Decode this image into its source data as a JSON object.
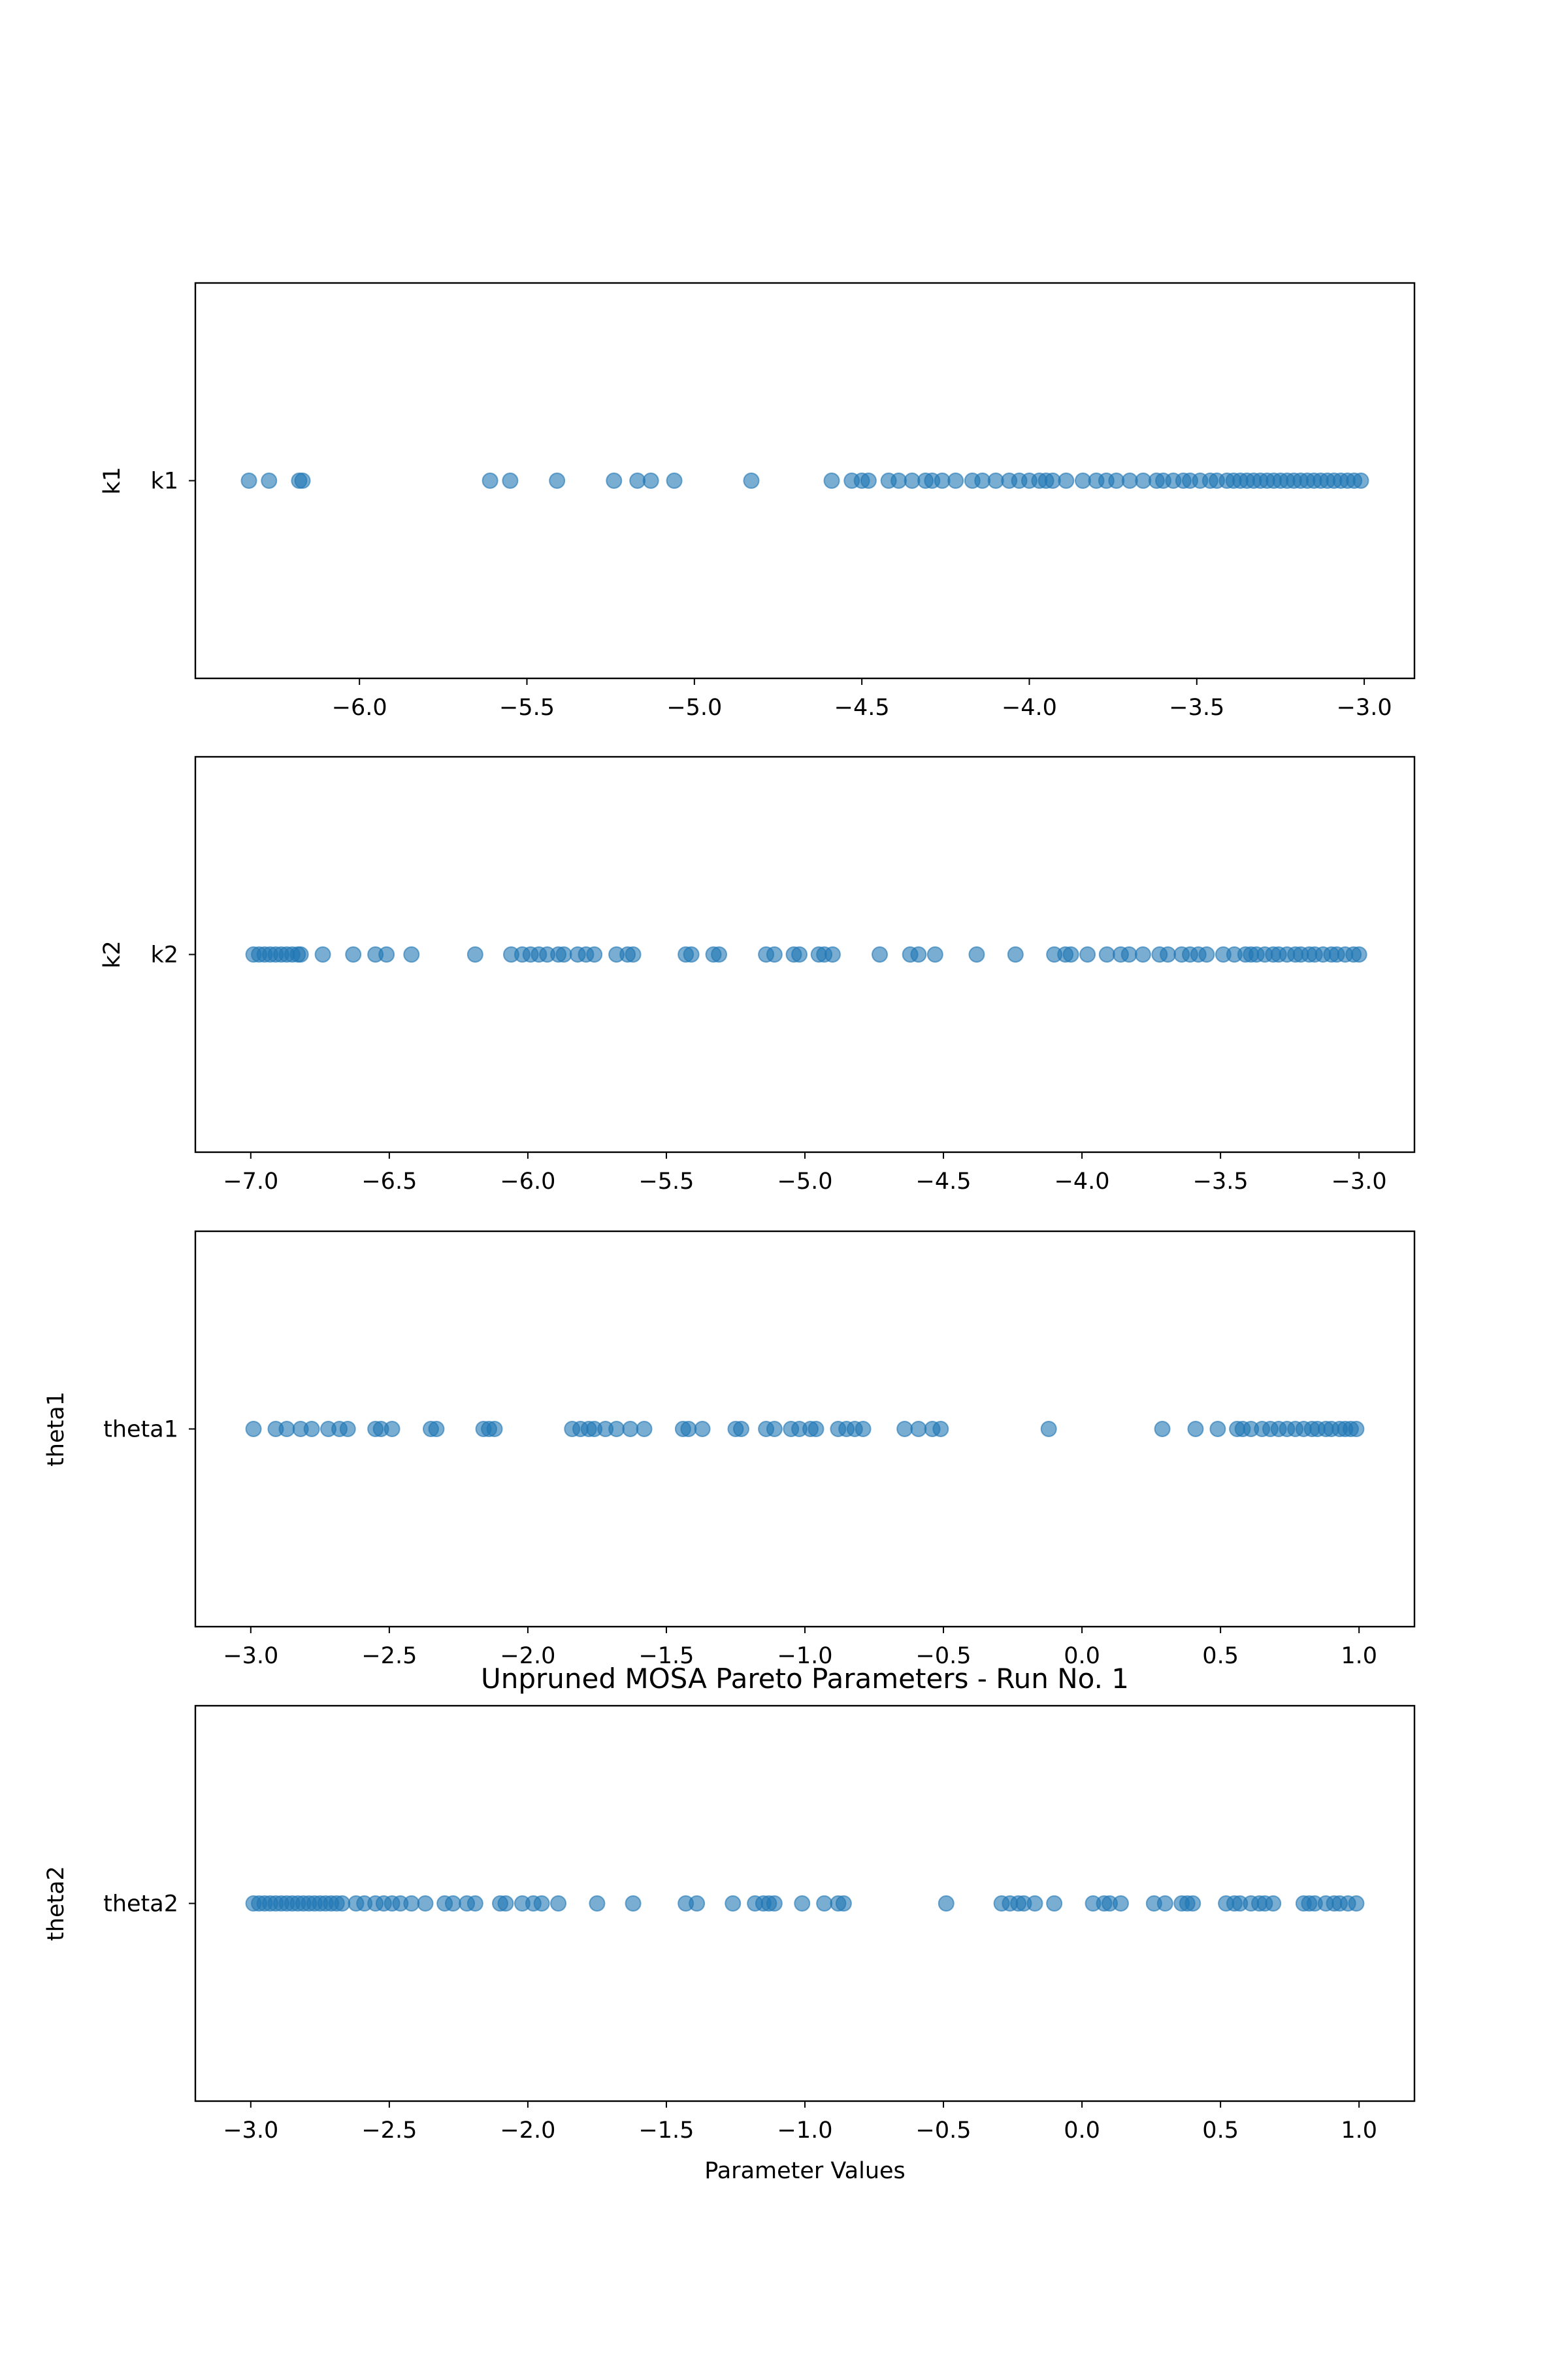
{
  "colors": {
    "marker": "#1f77b4",
    "axes": "#000000",
    "background": "#ffffff"
  },
  "chart_data": [
    {
      "type": "scatter",
      "title": "",
      "xlabel": "",
      "ylabel": "k1",
      "category": "k1",
      "xlim": [
        -6.49,
        -2.85
      ],
      "xticks": [
        -6.0,
        -5.5,
        -5.0,
        -4.5,
        -4.0,
        -3.5,
        -3.0
      ],
      "xtick_labels": [
        "−6.0",
        "−5.5",
        "−5.0",
        "−4.5",
        "−4.0",
        "−3.5",
        "−3.0"
      ],
      "grid": false,
      "x": [
        -6.33,
        -6.27,
        -6.18,
        -6.17,
        -5.61,
        -5.55,
        -5.41,
        -5.24,
        -5.17,
        -5.13,
        -5.06,
        -4.83,
        -4.59,
        -4.53,
        -4.5,
        -4.48,
        -4.42,
        -4.39,
        -4.35,
        -4.31,
        -4.29,
        -4.26,
        -4.22,
        -4.17,
        -4.14,
        -4.1,
        -4.06,
        -4.03,
        -4.0,
        -3.97,
        -3.95,
        -3.93,
        -3.89,
        -3.84,
        -3.8,
        -3.77,
        -3.74,
        -3.7,
        -3.66,
        -3.62,
        -3.6,
        -3.57,
        -3.54,
        -3.52,
        -3.49,
        -3.46,
        -3.44,
        -3.41,
        -3.39,
        -3.37,
        -3.35,
        -3.33,
        -3.31,
        -3.29,
        -3.27,
        -3.25,
        -3.23,
        -3.21,
        -3.19,
        -3.17,
        -3.15,
        -3.13,
        -3.11,
        -3.09,
        -3.07,
        -3.05,
        -3.03,
        -3.01
      ]
    },
    {
      "type": "scatter",
      "title": "",
      "xlabel": "",
      "ylabel": "k2",
      "category": "k2",
      "xlim": [
        -7.2,
        -2.8
      ],
      "xticks": [
        -7.0,
        -6.5,
        -6.0,
        -5.5,
        -5.0,
        -4.5,
        -4.0,
        -3.5,
        -3.0
      ],
      "xtick_labels": [
        "−7.0",
        "−6.5",
        "−6.0",
        "−5.5",
        "−5.0",
        "−4.5",
        "−4.0",
        "−3.5",
        "−3.0"
      ],
      "grid": false,
      "x": [
        -6.99,
        -6.97,
        -6.95,
        -6.93,
        -6.91,
        -6.89,
        -6.87,
        -6.85,
        -6.83,
        -6.82,
        -6.74,
        -6.63,
        -6.55,
        -6.51,
        -6.42,
        -6.19,
        -6.06,
        -6.02,
        -5.99,
        -5.96,
        -5.93,
        -5.89,
        -5.87,
        -5.82,
        -5.79,
        -5.76,
        -5.68,
        -5.64,
        -5.62,
        -5.43,
        -5.41,
        -5.33,
        -5.31,
        -5.14,
        -5.11,
        -5.04,
        -5.02,
        -4.95,
        -4.93,
        -4.9,
        -4.73,
        -4.62,
        -4.59,
        -4.53,
        -4.38,
        -4.24,
        -4.1,
        -4.06,
        -4.04,
        -3.98,
        -3.91,
        -3.86,
        -3.83,
        -3.78,
        -3.72,
        -3.69,
        -3.64,
        -3.61,
        -3.58,
        -3.55,
        -3.49,
        -3.45,
        -3.41,
        -3.39,
        -3.37,
        -3.34,
        -3.31,
        -3.29,
        -3.26,
        -3.23,
        -3.21,
        -3.18,
        -3.16,
        -3.13,
        -3.1,
        -3.08,
        -3.05,
        -3.02,
        -3.0
      ]
    },
    {
      "type": "scatter",
      "title": "",
      "xlabel": "",
      "ylabel": "theta1",
      "category": "theta1",
      "xlim": [
        -3.2,
        1.2
      ],
      "xticks": [
        -3.0,
        -2.5,
        -2.0,
        -1.5,
        -1.0,
        -0.5,
        0.0,
        0.5,
        1.0
      ],
      "xtick_labels": [
        "−3.0",
        "−2.5",
        "−2.0",
        "−1.5",
        "−1.0",
        "−0.5",
        "0.0",
        "0.5",
        "1.0"
      ],
      "grid": false,
      "x": [
        -2.99,
        -2.91,
        -2.87,
        -2.82,
        -2.78,
        -2.72,
        -2.68,
        -2.65,
        -2.55,
        -2.53,
        -2.49,
        -2.35,
        -2.33,
        -2.16,
        -2.14,
        -2.12,
        -1.84,
        -1.81,
        -1.78,
        -1.76,
        -1.72,
        -1.68,
        -1.63,
        -1.58,
        -1.44,
        -1.42,
        -1.37,
        -1.25,
        -1.23,
        -1.14,
        -1.11,
        -1.05,
        -1.02,
        -0.98,
        -0.96,
        -0.88,
        -0.85,
        -0.82,
        -0.79,
        -0.64,
        -0.59,
        -0.54,
        -0.51,
        -0.12,
        0.29,
        0.41,
        0.49,
        0.56,
        0.58,
        0.61,
        0.65,
        0.68,
        0.71,
        0.74,
        0.77,
        0.8,
        0.83,
        0.85,
        0.88,
        0.9,
        0.93,
        0.95,
        0.97,
        0.99
      ]
    },
    {
      "type": "scatter",
      "title": "Unpruned MOSA Pareto Parameters - Run No. 1",
      "xlabel": "Parameter Values",
      "ylabel": "theta2",
      "category": "theta2",
      "xlim": [
        -3.2,
        1.2
      ],
      "xticks": [
        -3.0,
        -2.5,
        -2.0,
        -1.5,
        -1.0,
        -0.5,
        0.0,
        0.5,
        1.0
      ],
      "xtick_labels": [
        "−3.0",
        "−2.5",
        "−2.0",
        "−1.5",
        "−1.0",
        "−0.5",
        "0.0",
        "0.5",
        "1.0"
      ],
      "grid": false,
      "x": [
        -2.99,
        -2.97,
        -2.95,
        -2.93,
        -2.91,
        -2.89,
        -2.87,
        -2.85,
        -2.83,
        -2.81,
        -2.79,
        -2.77,
        -2.75,
        -2.73,
        -2.71,
        -2.69,
        -2.67,
        -2.62,
        -2.59,
        -2.55,
        -2.52,
        -2.49,
        -2.46,
        -2.42,
        -2.37,
        -2.3,
        -2.27,
        -2.22,
        -2.19,
        -2.1,
        -2.08,
        -2.02,
        -1.98,
        -1.95,
        -1.89,
        -1.75,
        -1.62,
        -1.43,
        -1.39,
        -1.26,
        -1.18,
        -1.15,
        -1.13,
        -1.11,
        -1.01,
        -0.93,
        -0.88,
        -0.86,
        -0.49,
        -0.29,
        -0.26,
        -0.23,
        -0.21,
        -0.17,
        -0.1,
        0.04,
        0.08,
        0.1,
        0.14,
        0.26,
        0.3,
        0.36,
        0.38,
        0.4,
        0.52,
        0.55,
        0.57,
        0.61,
        0.64,
        0.66,
        0.69,
        0.8,
        0.82,
        0.84,
        0.88,
        0.91,
        0.93,
        0.96,
        0.99
      ]
    }
  ]
}
